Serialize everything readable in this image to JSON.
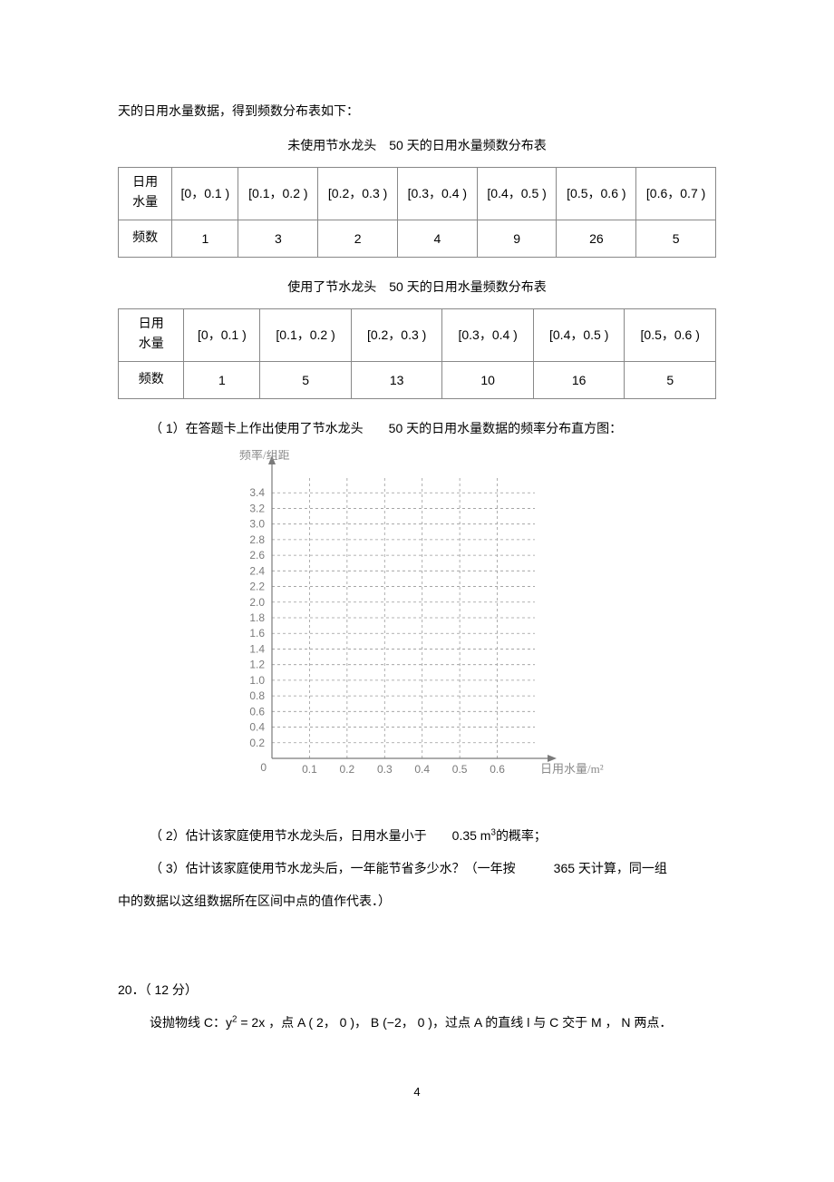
{
  "intro_line": "天的日用水量数据，得到频数分布表如下：",
  "table1": {
    "caption": "未使用节水龙头　50 天的日用水量频数分布表",
    "rowhead_usage": "日用\n水量",
    "rowhead_freq": "频数",
    "bins": [
      "[0，0.1 )",
      "[0.1，0.2 )",
      "[0.2，0.3 )",
      "[0.3，0.4 )",
      "[0.4，0.5 )",
      "[0.5，0.6 )",
      "[0.6，0.7 )"
    ],
    "freqs": [
      "1",
      "3",
      "2",
      "4",
      "9",
      "26",
      "5"
    ]
  },
  "table2": {
    "caption": "使用了节水龙头　50 天的日用水量频数分布表",
    "rowhead_usage": "日用\n水量",
    "rowhead_freq": "频数",
    "bins": [
      "[0，0.1 )",
      "[0.1，0.2 )",
      "[0.2，0.3 )",
      "[0.3，0.4 )",
      "[0.4，0.5 )",
      "[0.5，0.6 )"
    ],
    "freqs": [
      "1",
      "5",
      "13",
      "10",
      "16",
      "5"
    ]
  },
  "q1": "（ 1）在答题卡上作出使用了节水龙头　　50 天的日用水量数据的频率分布直方图：",
  "chart": {
    "type": "empty-grid-histogram",
    "y_title": "频率/组距",
    "x_title": "日用水量/m²",
    "x_ticks": [
      0.1,
      0.2,
      0.3,
      0.4,
      0.5,
      0.6
    ],
    "x_tick_labels": [
      "0.1",
      "0.2",
      "0.3",
      "0.4",
      "0.5",
      "0.6"
    ],
    "y_ticks": [
      0.2,
      0.4,
      0.6,
      0.8,
      1.0,
      1.2,
      1.4,
      1.6,
      1.8,
      2.0,
      2.2,
      2.4,
      2.6,
      2.8,
      3.0,
      3.2,
      3.4
    ],
    "y_tick_labels": [
      "0.2",
      "0.4",
      "0.6",
      "0.8",
      "1.0",
      "1.2",
      "1.4",
      "1.6",
      "1.8",
      "2.0",
      "2.2",
      "2.4",
      "2.6",
      "2.8",
      "3.0",
      "3.2",
      "3.4"
    ],
    "axis_color": "#7a7a7a",
    "grid_color": "#9a9a9a",
    "label_color": "#8a8a8a"
  },
  "q2_a": "（ 2）估计该家庭使用节水龙头后，日用水量小于　　0.35 m",
  "q2_b": "的概率；",
  "q3_a": "（ 3）估计该家庭使用节水龙头后，一年能节省多少水？（一年按　　　365 天计算，同一组",
  "q3_b": "中的数据以这组数据所在区间中点的值作代表．）",
  "q20": {
    "num": "20．",
    "pts": "（ 12 分）",
    "body_a": "设抛物线  C：y",
    "body_b": " = 2x ，点  A ( 2， 0 )，  B (−2， 0 )，过点  A 的直线  l 与 C 交于 M ， N 两点．"
  },
  "page_number": "4"
}
